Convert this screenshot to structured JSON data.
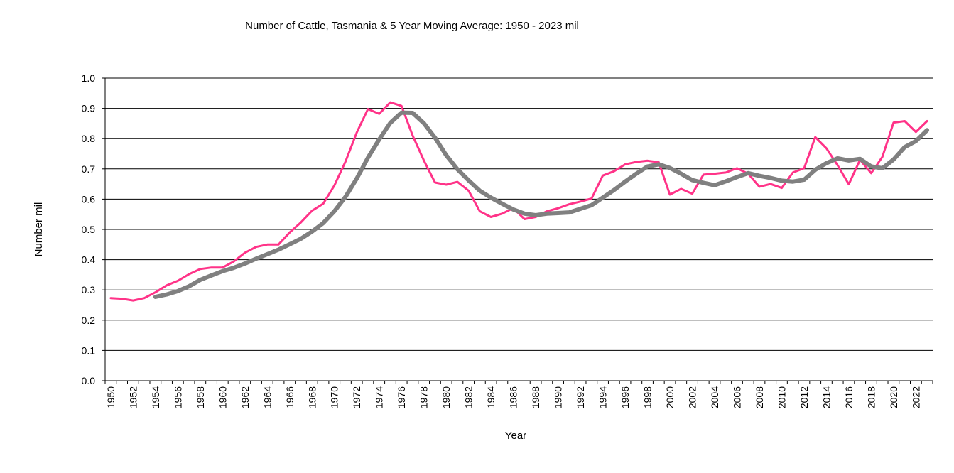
{
  "chart_data": {
    "type": "line",
    "title": "Number of  Cattle, Tasmania & 5 Year Moving Average: 1950 - 2023 mil",
    "xlabel": "Year",
    "ylabel": "Number mil",
    "ylim": [
      0,
      1.0
    ],
    "yticks": [
      "0.0",
      "0.1",
      "0.2",
      "0.3",
      "0.4",
      "0.5",
      "0.6",
      "0.7",
      "0.8",
      "0.9",
      "1.0"
    ],
    "grid": true,
    "legend": "none",
    "x": [
      1950,
      1951,
      1952,
      1953,
      1954,
      1955,
      1956,
      1957,
      1958,
      1959,
      1960,
      1961,
      1962,
      1963,
      1964,
      1965,
      1966,
      1967,
      1968,
      1969,
      1970,
      1971,
      1972,
      1973,
      1974,
      1975,
      1976,
      1977,
      1978,
      1979,
      1980,
      1981,
      1982,
      1983,
      1984,
      1985,
      1986,
      1987,
      1988,
      1989,
      1990,
      1991,
      1992,
      1993,
      1994,
      1995,
      1996,
      1997,
      1998,
      1999,
      2000,
      2001,
      2002,
      2003,
      2004,
      2005,
      2006,
      2007,
      2008,
      2009,
      2010,
      2011,
      2012,
      2013,
      2014,
      2015,
      2016,
      2017,
      2018,
      2019,
      2020,
      2021,
      2022,
      2023
    ],
    "xtick_labels": [
      "1950",
      "1952",
      "1954",
      "1956",
      "1958",
      "1960",
      "1962",
      "1964",
      "1966",
      "1968",
      "1970",
      "1972",
      "1974",
      "1976",
      "1978",
      "1980",
      "1982",
      "1984",
      "1986",
      "1988",
      "1990",
      "1992",
      "1994",
      "1996",
      "1998",
      "2000",
      "2002",
      "2004",
      "2006",
      "2008",
      "2010",
      "2012",
      "2014",
      "2016",
      "2018",
      "2020",
      "2022"
    ],
    "series": [
      {
        "name": "Cattle",
        "color": "#ff3388",
        "values": [
          0.273,
          0.271,
          0.265,
          0.273,
          0.292,
          0.315,
          0.33,
          0.352,
          0.369,
          0.374,
          0.374,
          0.394,
          0.423,
          0.442,
          0.45,
          0.45,
          0.49,
          0.523,
          0.562,
          0.585,
          0.645,
          0.725,
          0.82,
          0.898,
          0.882,
          0.92,
          0.908,
          0.81,
          0.728,
          0.655,
          0.648,
          0.657,
          0.628,
          0.56,
          0.541,
          0.552,
          0.57,
          0.534,
          0.541,
          0.56,
          0.57,
          0.583,
          0.592,
          0.602,
          0.678,
          0.692,
          0.715,
          0.723,
          0.727,
          0.722,
          0.615,
          0.634,
          0.618,
          0.681,
          0.684,
          0.688,
          0.702,
          0.684,
          0.641,
          0.65,
          0.637,
          0.688,
          0.702,
          0.805,
          0.768,
          0.712,
          0.649,
          0.73,
          0.686,
          0.74,
          0.853,
          0.858,
          0.822,
          0.858
        ]
      },
      {
        "name": "5 Year Moving Average",
        "color": "#808080",
        "values": [
          null,
          null,
          null,
          null,
          0.277,
          0.285,
          0.296,
          0.312,
          0.333,
          0.348,
          0.362,
          0.373,
          0.387,
          0.403,
          0.418,
          0.433,
          0.451,
          0.469,
          0.493,
          0.521,
          0.56,
          0.608,
          0.668,
          0.737,
          0.797,
          0.852,
          0.886,
          0.885,
          0.851,
          0.803,
          0.745,
          0.699,
          0.662,
          0.628,
          0.605,
          0.585,
          0.566,
          0.552,
          0.547,
          0.552,
          0.554,
          0.556,
          0.568,
          0.58,
          0.605,
          0.63,
          0.658,
          0.684,
          0.708,
          0.715,
          0.703,
          0.684,
          0.663,
          0.654,
          0.646,
          0.659,
          0.673,
          0.686,
          0.677,
          0.67,
          0.661,
          0.658,
          0.664,
          0.697,
          0.719,
          0.735,
          0.728,
          0.733,
          0.708,
          0.702,
          0.731,
          0.772,
          0.792,
          0.828
        ]
      }
    ]
  }
}
